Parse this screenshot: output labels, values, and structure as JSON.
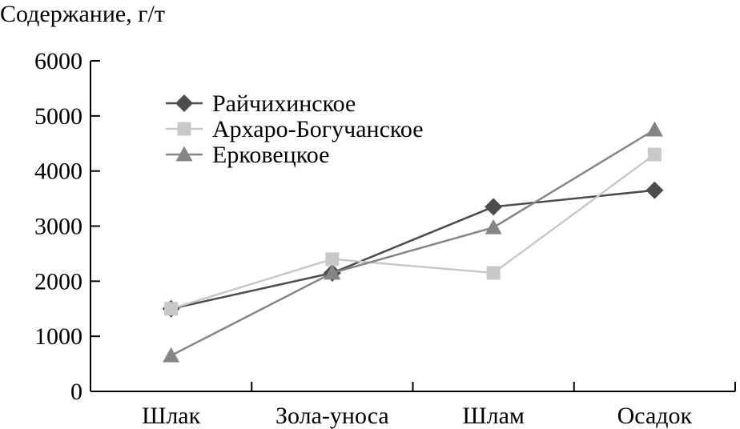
{
  "chart_data": {
    "type": "line",
    "ylabel": "Содержание, г/т",
    "xlabel": "",
    "categories": [
      "Шлак",
      "Зола-уноса",
      "Шлам",
      "Осадок"
    ],
    "ylim": [
      0,
      6000
    ],
    "yticks": [
      0,
      1000,
      2000,
      3000,
      4000,
      5000,
      6000
    ],
    "grid": false,
    "legend_position": "top-left",
    "series": [
      {
        "name": "Райчихинское",
        "values": [
          1500,
          2150,
          3350,
          3650
        ],
        "color": "#4d4d4d",
        "marker": "diamond"
      },
      {
        "name": "Архаро-Богучанское",
        "values": [
          1500,
          2400,
          2150,
          4300
        ],
        "color": "#c8c8c8",
        "marker": "square"
      },
      {
        "name": "Ерковецкое",
        "values": [
          650,
          2150,
          2975,
          4750
        ],
        "color": "#858585",
        "marker": "triangle"
      }
    ]
  }
}
